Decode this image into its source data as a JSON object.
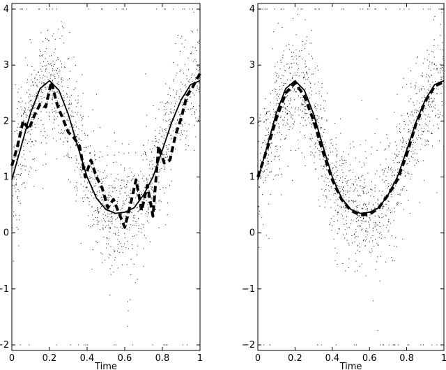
{
  "chart_data": [
    {
      "type": "scatter",
      "title": "",
      "xlabel": "Time",
      "ylabel": "",
      "xlim": [
        0,
        1
      ],
      "ylim": [
        -2.1,
        4.1
      ],
      "xticks": [
        0,
        0.2,
        0.4,
        0.6,
        0.8,
        1
      ],
      "xtick_labels": [
        "0",
        "0.2",
        "0.4",
        "0.6",
        "0.8",
        "1"
      ],
      "yticks": [
        -2,
        -1,
        0,
        1,
        2,
        3,
        4
      ],
      "ytick_labels": [
        "−2",
        "−1",
        "0",
        "1",
        "2",
        "3",
        "4"
      ],
      "grid": false,
      "colors": {
        "marks": "#000000"
      },
      "observations": {
        "description_levels": "noisy observations scattered around the true curve; some outliers clipped at y=4 and y=-2",
        "noise_sd": 0.55,
        "clipped_levels": [
          4,
          -2
        ]
      },
      "series": [
        {
          "style": "solid",
          "x": [
            0,
            0.05,
            0.1,
            0.15,
            0.2,
            0.25,
            0.3,
            0.35,
            0.4,
            0.45,
            0.5,
            0.55,
            0.6,
            0.65,
            0.7,
            0.75,
            0.8,
            0.85,
            0.9,
            0.95,
            1
          ],
          "y": [
            0.95,
            1.55,
            2.15,
            2.58,
            2.72,
            2.55,
            2.12,
            1.55,
            1.0,
            0.62,
            0.42,
            0.35,
            0.37,
            0.45,
            0.68,
            1.0,
            1.48,
            1.98,
            2.38,
            2.65,
            2.72
          ]
        },
        {
          "style": "dashed",
          "x": [
            0,
            0.03,
            0.06,
            0.09,
            0.12,
            0.15,
            0.18,
            0.21,
            0.24,
            0.27,
            0.3,
            0.33,
            0.36,
            0.39,
            0.42,
            0.45,
            0.48,
            0.51,
            0.54,
            0.57,
            0.6,
            0.63,
            0.66,
            0.69,
            0.72,
            0.75,
            0.78,
            0.81,
            0.84,
            0.87,
            0.9,
            0.93,
            0.96,
            1
          ],
          "y": [
            1.2,
            1.55,
            2.0,
            1.85,
            2.1,
            2.3,
            2.25,
            2.7,
            2.3,
            2.05,
            1.8,
            1.7,
            1.55,
            1.0,
            1.3,
            1.0,
            0.8,
            0.45,
            0.6,
            0.35,
            0.1,
            0.5,
            0.95,
            0.4,
            0.85,
            0.3,
            1.55,
            1.25,
            1.3,
            1.75,
            2.05,
            2.45,
            2.6,
            2.85
          ]
        }
      ]
    },
    {
      "type": "scatter",
      "title": "",
      "xlabel": "Time",
      "ylabel": "",
      "xlim": [
        0,
        1
      ],
      "ylim": [
        -2.1,
        4.1
      ],
      "xticks": [
        0,
        0.2,
        0.4,
        0.6,
        0.8,
        1
      ],
      "xtick_labels": [
        "0",
        "0.2",
        "0.4",
        "0.6",
        "0.8",
        "1"
      ],
      "yticks": [
        -2,
        -1,
        0,
        1,
        2,
        3,
        4
      ],
      "ytick_labels": [
        "−2",
        "−1",
        "0",
        "1",
        "2",
        "3",
        "4"
      ],
      "grid": false,
      "colors": {
        "marks": "#000000"
      },
      "observations": {
        "description_levels": "noisy observations scattered around the true curve; some outliers clipped at y=4 and y=-2",
        "noise_sd": 0.55,
        "clipped_levels": [
          4,
          -2
        ]
      },
      "series": [
        {
          "style": "solid",
          "x": [
            0,
            0.05,
            0.1,
            0.15,
            0.2,
            0.25,
            0.3,
            0.35,
            0.4,
            0.45,
            0.5,
            0.55,
            0.6,
            0.65,
            0.7,
            0.75,
            0.8,
            0.85,
            0.9,
            0.95,
            1
          ],
          "y": [
            0.95,
            1.55,
            2.15,
            2.58,
            2.72,
            2.55,
            2.12,
            1.55,
            1.0,
            0.62,
            0.42,
            0.35,
            0.37,
            0.45,
            0.68,
            1.0,
            1.48,
            1.98,
            2.38,
            2.65,
            2.72
          ]
        },
        {
          "style": "dashed",
          "x": [
            0,
            0.05,
            0.1,
            0.15,
            0.2,
            0.25,
            0.3,
            0.35,
            0.4,
            0.45,
            0.5,
            0.55,
            0.6,
            0.65,
            0.7,
            0.75,
            0.8,
            0.85,
            0.9,
            0.95,
            1
          ],
          "y": [
            1.0,
            1.5,
            2.05,
            2.5,
            2.68,
            2.45,
            2.0,
            1.45,
            0.95,
            0.6,
            0.4,
            0.32,
            0.33,
            0.45,
            0.68,
            0.95,
            1.4,
            1.95,
            2.35,
            2.62,
            2.7
          ]
        }
      ]
    }
  ]
}
